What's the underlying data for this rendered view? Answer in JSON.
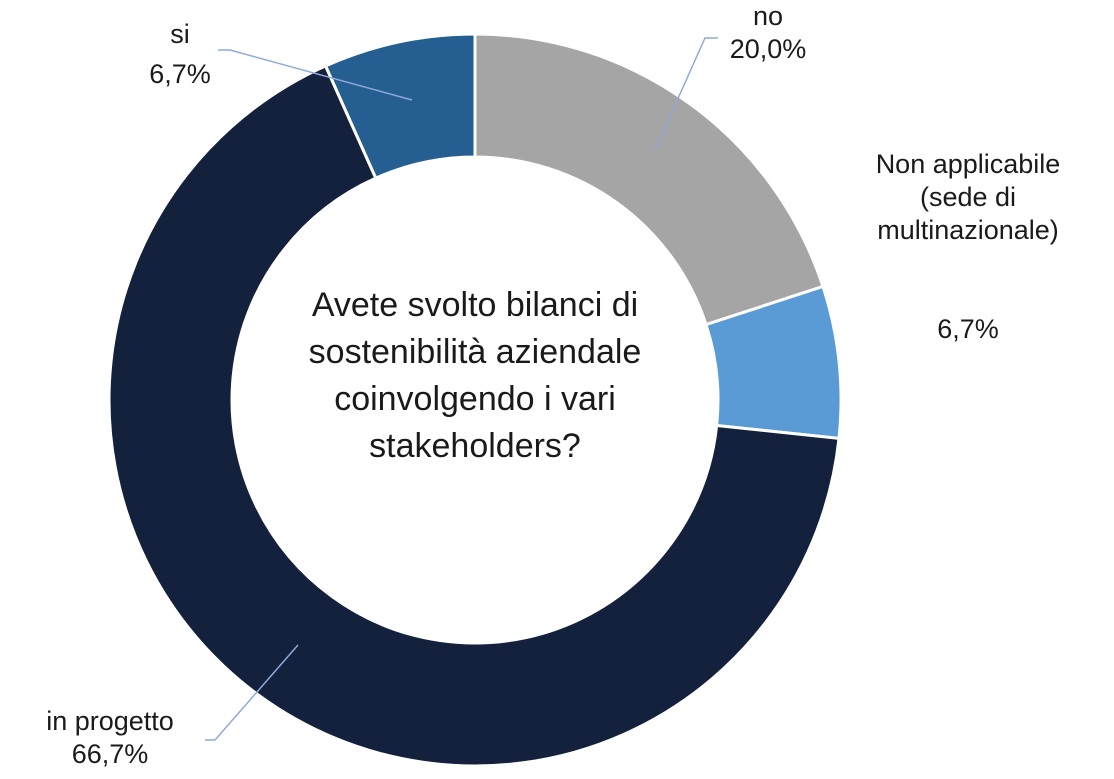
{
  "chart_data": {
    "type": "donut",
    "title": "Avete svolto bilanci di sostenibilità aziendale coinvolgendo i vari stakeholders?",
    "categories": [
      "no",
      "Non applicabile (sede di multinazionale)",
      "in progetto",
      "si"
    ],
    "values": [
      20.0,
      6.7,
      66.7,
      6.7
    ],
    "value_labels": [
      "20,0%",
      "6,7%",
      "66,7%",
      "6,7%"
    ],
    "colors": [
      "#a5a5a5",
      "#5b9bd5",
      "#14213d",
      "#255e91"
    ]
  }
}
